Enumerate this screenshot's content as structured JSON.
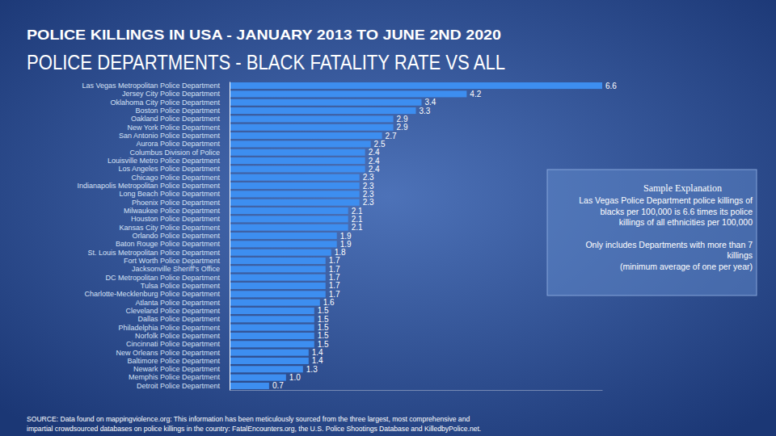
{
  "chart_data": {
    "type": "bar",
    "orientation": "horizontal",
    "subtitle": "POLICE KILLINGS IN USA - JANUARY 2013 TO JUNE 2ND 2020",
    "title": "POLICE DEPARTMENTS - BLACK FATALITY RATE VS ALL",
    "categories": [
      "Las Vegas Metropolitan Police Department",
      "Jersey City Police Department",
      "Oklahoma City Police Department",
      "Boston Police Department",
      "Oakland Police Department",
      "New York Police Department",
      "San Antonio Police Department",
      "Aurora Police Department",
      "Columbus Division of Police",
      "Louisville Metro Police Department",
      "Los Angeles Police Department",
      "Chicago Police Department",
      "Indianapolis Metropolitan Police Department",
      "Long Beach Police Department",
      "Phoenix Police Department",
      "Milwaukee Police Department",
      "Houston Police Department",
      "Kansas City Police Department",
      "Orlando Police Department",
      "Baton Rouge Police Department",
      "St. Louis Metropolitan Police Department",
      "Fort Worth Police Department",
      "Jacksonville Sheriff's Office",
      "DC Metropolitan Police Department",
      "Tulsa Police Department",
      "Charlotte-Mecklenburg Police Department",
      "Atlanta Police Department",
      "Cleveland Police Department",
      "Dallas Police Department",
      "Philadelphia Police Department",
      "Norfolk Police Department",
      "Cincinnati Police Department",
      "New Orleans Police Department",
      "Baltimore Police Department",
      "Newark Police Department",
      "Memphis Police Department",
      "Detroit Police Department"
    ],
    "values": [
      6.6,
      4.2,
      3.4,
      3.3,
      2.9,
      2.9,
      2.7,
      2.5,
      2.4,
      2.4,
      2.4,
      2.3,
      2.3,
      2.3,
      2.3,
      2.1,
      2.1,
      2.1,
      1.9,
      1.9,
      1.8,
      1.7,
      1.7,
      1.7,
      1.7,
      1.7,
      1.6,
      1.5,
      1.5,
      1.5,
      1.5,
      1.5,
      1.4,
      1.4,
      1.3,
      1.0,
      0.7
    ],
    "value_labels": [
      "6.6",
      "4.2",
      "3.4",
      "3.3",
      "2.9",
      "2.9",
      "2.7",
      "2.5",
      "2.4",
      "2.4",
      "2.4",
      "2.3",
      "2.3",
      "2.3",
      "2.3",
      "2.1",
      "2.1",
      "2.1",
      "1.9",
      "1.9",
      "1.8",
      "1.7",
      "1.7",
      "1.7",
      "1.7",
      "1.7",
      "1.6",
      "1.5",
      "1.5",
      "1.5",
      "1.5",
      "1.5",
      "1.4",
      "1.4",
      "1.3",
      "1.0",
      "0.7"
    ],
    "color": "#3d8ef0",
    "xlim": [
      0,
      6.6
    ],
    "xticks": [],
    "tick_labels": "y",
    "grid": false,
    "data_labels": true,
    "annotation": {
      "heading": "Sample Explanation",
      "paragraphs": [
        [
          "Las Vegas Police Department police killings of",
          "blacks per 100,000 is 6.6 times its police",
          "killings of all ethnicities per 100,000"
        ],
        [
          "Only includes Departments with more than 7",
          "killings",
          "(minimum average of one per year)"
        ]
      ]
    },
    "source": [
      "SOURCE: Data found on mappingviolence.org: This information has been meticulously sourced from the three largest, most comprehensive and",
      "impartial crowdsourced databases on police killings in the country: FatalEncounters.org, the U.S. Police Shootings Database and KilledbyPolice.net."
    ]
  }
}
